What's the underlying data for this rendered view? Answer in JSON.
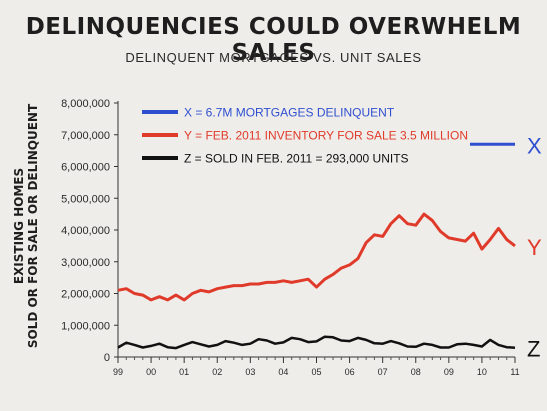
{
  "title": "DELINQUENCIES COULD OVERWHELM SALES",
  "subtitle": "DELINQUENT MORTGAGES VS. UNIT SALES",
  "chart_data": {
    "type": "line",
    "ylabel_lines": [
      "EXISTING HOMES",
      "SOLD OR FOR SALE OR DELINQUENT"
    ],
    "ylim": [
      0,
      8000000
    ],
    "y_ticks": [
      "0",
      "1,000,000",
      "2,000,000",
      "3,000,000",
      "4,000,000",
      "5,000,000",
      "6,000,000",
      "7,000,000",
      "8,000,000"
    ],
    "x_ticks": [
      "99",
      "00",
      "01",
      "02",
      "03",
      "04",
      "05",
      "06",
      "07",
      "08",
      "09",
      "10",
      "11"
    ],
    "xlim": [
      1999.0,
      2011.0
    ],
    "legend": [
      {
        "text": "X = 6.7M MORTGAGES DELINQUENT",
        "color": "#2f4fd0"
      },
      {
        "text": "Y = FEB. 2011 INVENTORY FOR SALE 3.5 MILLION",
        "color": "#e03a2a"
      },
      {
        "text": "Z = SOLD IN FEB. 2011 = 293,000 UNITS",
        "color": "#111111"
      }
    ],
    "series": [
      {
        "label": "X",
        "color": "#2f4fd0",
        "points": [
          [
            2011.0,
            6700000
          ]
        ]
      },
      {
        "label": "Y",
        "color": "#e03a2a",
        "points": [
          [
            1999.0,
            2100000
          ],
          [
            1999.25,
            2150000
          ],
          [
            1999.5,
            2000000
          ],
          [
            1999.75,
            1950000
          ],
          [
            2000.0,
            1800000
          ],
          [
            2000.25,
            1900000
          ],
          [
            2000.5,
            1800000
          ],
          [
            2000.75,
            1950000
          ],
          [
            2001.0,
            1800000
          ],
          [
            2001.25,
            2000000
          ],
          [
            2001.5,
            2100000
          ],
          [
            2001.75,
            2050000
          ],
          [
            2002.0,
            2150000
          ],
          [
            2002.25,
            2200000
          ],
          [
            2002.5,
            2250000
          ],
          [
            2002.75,
            2250000
          ],
          [
            2003.0,
            2300000
          ],
          [
            2003.25,
            2300000
          ],
          [
            2003.5,
            2350000
          ],
          [
            2003.75,
            2350000
          ],
          [
            2004.0,
            2400000
          ],
          [
            2004.25,
            2350000
          ],
          [
            2004.5,
            2400000
          ],
          [
            2004.75,
            2450000
          ],
          [
            2005.0,
            2200000
          ],
          [
            2005.25,
            2450000
          ],
          [
            2005.5,
            2600000
          ],
          [
            2005.75,
            2800000
          ],
          [
            2006.0,
            2900000
          ],
          [
            2006.25,
            3100000
          ],
          [
            2006.5,
            3600000
          ],
          [
            2006.75,
            3850000
          ],
          [
            2007.0,
            3800000
          ],
          [
            2007.25,
            4200000
          ],
          [
            2007.5,
            4450000
          ],
          [
            2007.75,
            4200000
          ],
          [
            2008.0,
            4150000
          ],
          [
            2008.25,
            4500000
          ],
          [
            2008.5,
            4300000
          ],
          [
            2008.75,
            3950000
          ],
          [
            2009.0,
            3750000
          ],
          [
            2009.25,
            3700000
          ],
          [
            2009.5,
            3650000
          ],
          [
            2009.75,
            3900000
          ],
          [
            2010.0,
            3400000
          ],
          [
            2010.25,
            3700000
          ],
          [
            2010.5,
            4050000
          ],
          [
            2010.75,
            3700000
          ],
          [
            2011.0,
            3500000
          ]
        ]
      },
      {
        "label": "Z",
        "color": "#111111",
        "points": [
          [
            1999.0,
            300000
          ],
          [
            1999.25,
            450000
          ],
          [
            1999.5,
            380000
          ],
          [
            1999.75,
            300000
          ],
          [
            2000.0,
            350000
          ],
          [
            2000.25,
            420000
          ],
          [
            2000.5,
            310000
          ],
          [
            2000.75,
            280000
          ],
          [
            2001.0,
            380000
          ],
          [
            2001.25,
            470000
          ],
          [
            2001.5,
            400000
          ],
          [
            2001.75,
            330000
          ],
          [
            2002.0,
            380000
          ],
          [
            2002.25,
            500000
          ],
          [
            2002.5,
            450000
          ],
          [
            2002.75,
            380000
          ],
          [
            2003.0,
            420000
          ],
          [
            2003.25,
            560000
          ],
          [
            2003.5,
            520000
          ],
          [
            2003.75,
            420000
          ],
          [
            2004.0,
            460000
          ],
          [
            2004.25,
            600000
          ],
          [
            2004.5,
            560000
          ],
          [
            2004.75,
            470000
          ],
          [
            2005.0,
            490000
          ],
          [
            2005.25,
            640000
          ],
          [
            2005.5,
            620000
          ],
          [
            2005.75,
            520000
          ],
          [
            2006.0,
            500000
          ],
          [
            2006.25,
            600000
          ],
          [
            2006.5,
            540000
          ],
          [
            2006.75,
            430000
          ],
          [
            2007.0,
            420000
          ],
          [
            2007.25,
            500000
          ],
          [
            2007.5,
            430000
          ],
          [
            2007.75,
            330000
          ],
          [
            2008.0,
            320000
          ],
          [
            2008.25,
            420000
          ],
          [
            2008.5,
            380000
          ],
          [
            2008.75,
            300000
          ],
          [
            2009.0,
            300000
          ],
          [
            2009.25,
            400000
          ],
          [
            2009.5,
            420000
          ],
          [
            2009.75,
            380000
          ],
          [
            2010.0,
            330000
          ],
          [
            2010.25,
            540000
          ],
          [
            2010.5,
            380000
          ],
          [
            2010.75,
            310000
          ],
          [
            2011.0,
            293000
          ]
        ]
      }
    ]
  }
}
